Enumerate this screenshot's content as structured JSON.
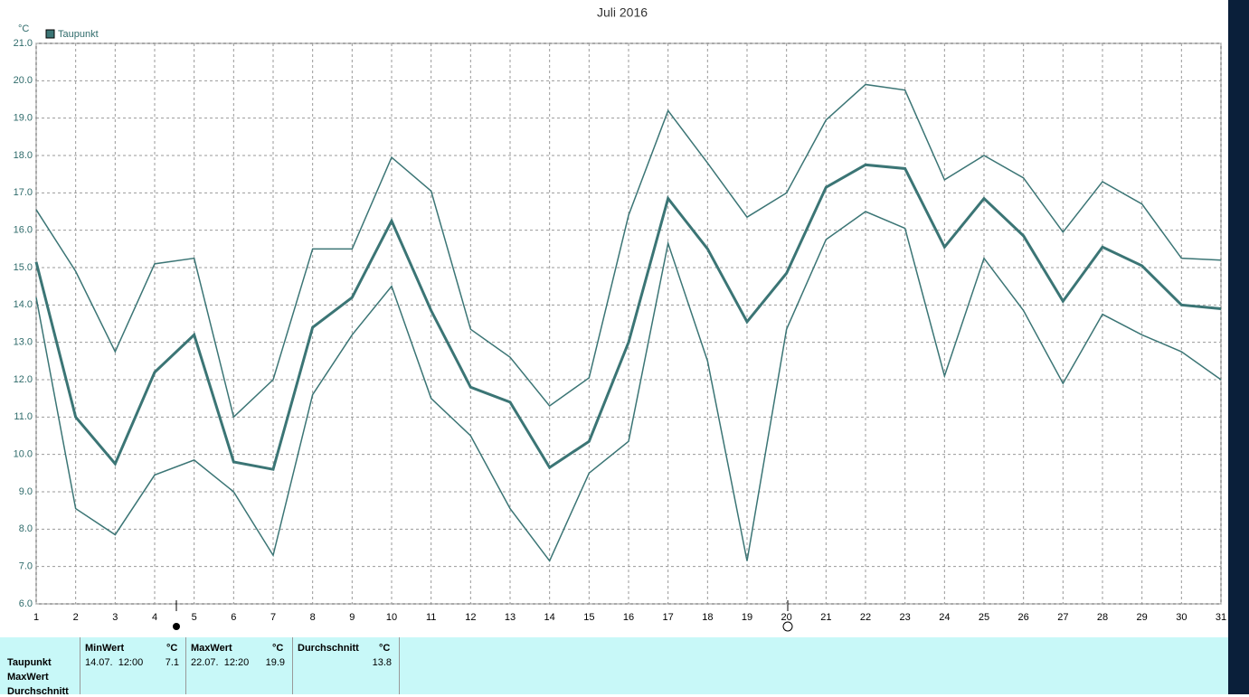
{
  "chart_data": {
    "type": "line",
    "title": "Juli 2016",
    "y_unit": "°C",
    "x": [
      1,
      2,
      3,
      4,
      5,
      6,
      7,
      8,
      9,
      10,
      11,
      12,
      13,
      14,
      15,
      16,
      17,
      18,
      19,
      20,
      21,
      22,
      23,
      24,
      25,
      26,
      27,
      28,
      29,
      30,
      31
    ],
    "xlim": [
      1,
      31
    ],
    "xticks": [
      1,
      2,
      3,
      4,
      5,
      6,
      7,
      8,
      9,
      10,
      11,
      12,
      13,
      14,
      15,
      16,
      17,
      18,
      19,
      20,
      21,
      22,
      23,
      24,
      25,
      26,
      27,
      28,
      29,
      30,
      31
    ],
    "ylim": [
      6,
      21
    ],
    "yticks": [
      {
        "value": 6,
        "label": "6.0"
      },
      {
        "value": 7,
        "label": "7.0"
      },
      {
        "value": 8,
        "label": "8.0"
      },
      {
        "value": 9,
        "label": "9.0"
      },
      {
        "value": 10,
        "label": "10.0"
      },
      {
        "value": 11,
        "label": "11.0"
      },
      {
        "value": 12,
        "label": "12.0"
      },
      {
        "value": 13,
        "label": "13.0"
      },
      {
        "value": 14,
        "label": "14.0"
      },
      {
        "value": 15,
        "label": "15.0"
      },
      {
        "value": 16,
        "label": "16.0"
      },
      {
        "value": 17,
        "label": "17.0"
      },
      {
        "value": 18,
        "label": "18.0"
      },
      {
        "value": 19,
        "label": "19.0"
      },
      {
        "value": 20,
        "label": "20.0"
      },
      {
        "value": 21,
        "label": "21.0"
      }
    ],
    "grid": true,
    "series": [
      {
        "color": "#3b7575",
        "line_width": 1.5,
        "values": [
          16.55,
          14.9,
          12.75,
          15.1,
          15.25,
          11.0,
          12.0,
          15.5,
          15.5,
          17.95,
          17.05,
          13.35,
          12.6,
          11.3,
          12.05,
          16.4,
          19.2,
          17.8,
          16.35,
          17.0,
          18.95,
          19.9,
          19.75,
          17.35,
          18.0,
          17.4,
          15.95,
          17.3,
          16.7,
          15.25,
          15.2
        ]
      },
      {
        "name": "Taupunkt",
        "color": "#3b7575",
        "line_width": 3,
        "values": [
          15.15,
          11.0,
          9.75,
          12.2,
          13.2,
          9.8,
          9.6,
          13.4,
          14.2,
          16.25,
          13.85,
          11.8,
          11.4,
          9.65,
          10.35,
          13.0,
          16.85,
          15.5,
          13.55,
          14.85,
          17.15,
          17.75,
          17.65,
          15.55,
          16.85,
          15.85,
          14.1,
          15.55,
          15.05,
          14.0,
          13.9
        ]
      },
      {
        "color": "#3b7575",
        "line_width": 1.5,
        "values": [
          14.2,
          8.55,
          7.85,
          9.45,
          9.85,
          9.0,
          7.3,
          11.6,
          13.2,
          14.5,
          11.5,
          10.5,
          8.55,
          7.15,
          9.5,
          10.35,
          15.65,
          12.5,
          7.15,
          13.35,
          15.75,
          16.5,
          16.05,
          12.1,
          15.25,
          13.85,
          11.9,
          13.75,
          13.2,
          12.75,
          12.0
        ]
      }
    ]
  },
  "table": {
    "row_labels": [
      "Taupunkt",
      "MaxWert",
      "Durchschnitt"
    ],
    "columns": [
      {
        "header": "MinWert",
        "unit": "°C",
        "time": "14.07.  12:00",
        "value": "7.1"
      },
      {
        "header": "MaxWert",
        "unit": "°C",
        "time": "22.07.  12:20",
        "value": "19.9"
      },
      {
        "header": "Durchschnitt",
        "unit": "°C",
        "time": "",
        "value": "13.8"
      }
    ]
  }
}
